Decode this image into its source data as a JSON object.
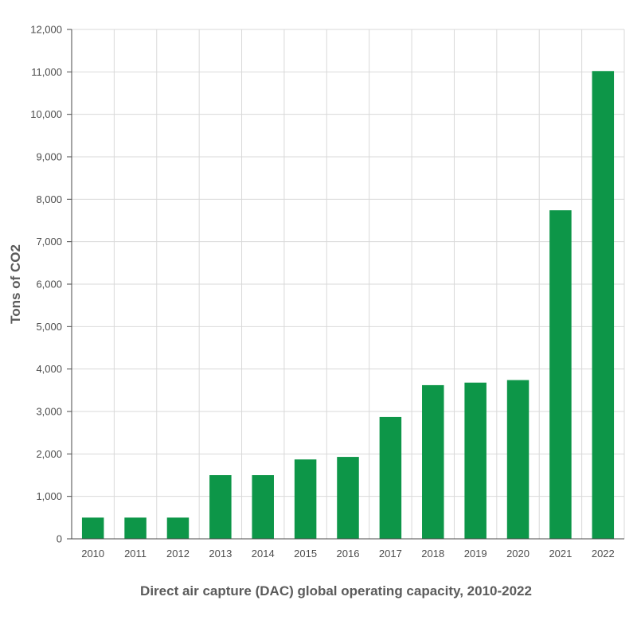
{
  "chart_data": {
    "type": "bar",
    "categories": [
      "2010",
      "2011",
      "2012",
      "2013",
      "2014",
      "2015",
      "2016",
      "2017",
      "2018",
      "2019",
      "2020",
      "2021",
      "2022"
    ],
    "values": [
      500,
      500,
      500,
      1500,
      1500,
      1870,
      1930,
      2870,
      3620,
      3680,
      3740,
      7740,
      11020
    ],
    "xlabel": "Direct air capture (DAC) global operating capacity, 2010-2022",
    "ylabel": "Tons of CO2",
    "ylim": [
      0,
      12000
    ],
    "yticks": [
      0,
      1000,
      2000,
      3000,
      4000,
      5000,
      6000,
      7000,
      8000,
      9000,
      10000,
      11000,
      12000
    ],
    "ytick_labels": [
      "0",
      "1,000",
      "2,000",
      "3,000",
      "4,000",
      "5,000",
      "6,000",
      "7,000",
      "8,000",
      "9,000",
      "10,000",
      "11,000",
      "12,000"
    ],
    "grid": true,
    "legend": "none",
    "bar_color": "#0d9648"
  }
}
